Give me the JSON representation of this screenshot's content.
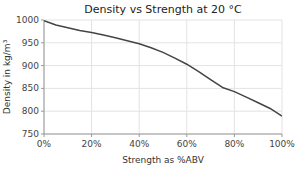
{
  "chart_data": {
    "type": "line",
    "title": "Density vs Strength at 20 °C",
    "x_label": "Strength as %ABV",
    "y_label": "Density in kg/m³",
    "x": [
      0.0,
      0.05,
      0.1,
      0.15,
      0.2,
      0.25,
      0.3,
      0.35,
      0.4,
      0.45,
      0.5,
      0.55,
      0.6,
      0.65,
      0.7,
      0.75,
      0.8,
      0.85,
      0.9,
      0.95,
      1.0
    ],
    "values": [
      998.2,
      989.0,
      983.0,
      977.0,
      972.5,
      967.0,
      961.0,
      954.5,
      948.0,
      939.0,
      929.0,
      916.5,
      903.0,
      887.0,
      869.5,
      852.0,
      843.0,
      831.0,
      818.5,
      806.0,
      789.0
    ],
    "color": "#444444",
    "xlim": [
      0,
      1.0
    ],
    "ylim": [
      750,
      1000
    ],
    "xticks": [
      {
        "value": 0,
        "label": "0%"
      },
      {
        "value": 0.2,
        "label": "20%"
      },
      {
        "value": 0.4,
        "label": "40%"
      },
      {
        "value": 0.6,
        "label": "60%"
      },
      {
        "value": 0.8,
        "label": "80%"
      },
      {
        "value": 1.0,
        "label": "100%"
      }
    ],
    "yticks": [
      750,
      800,
      850,
      900,
      950,
      1000
    ],
    "grid": true
  }
}
